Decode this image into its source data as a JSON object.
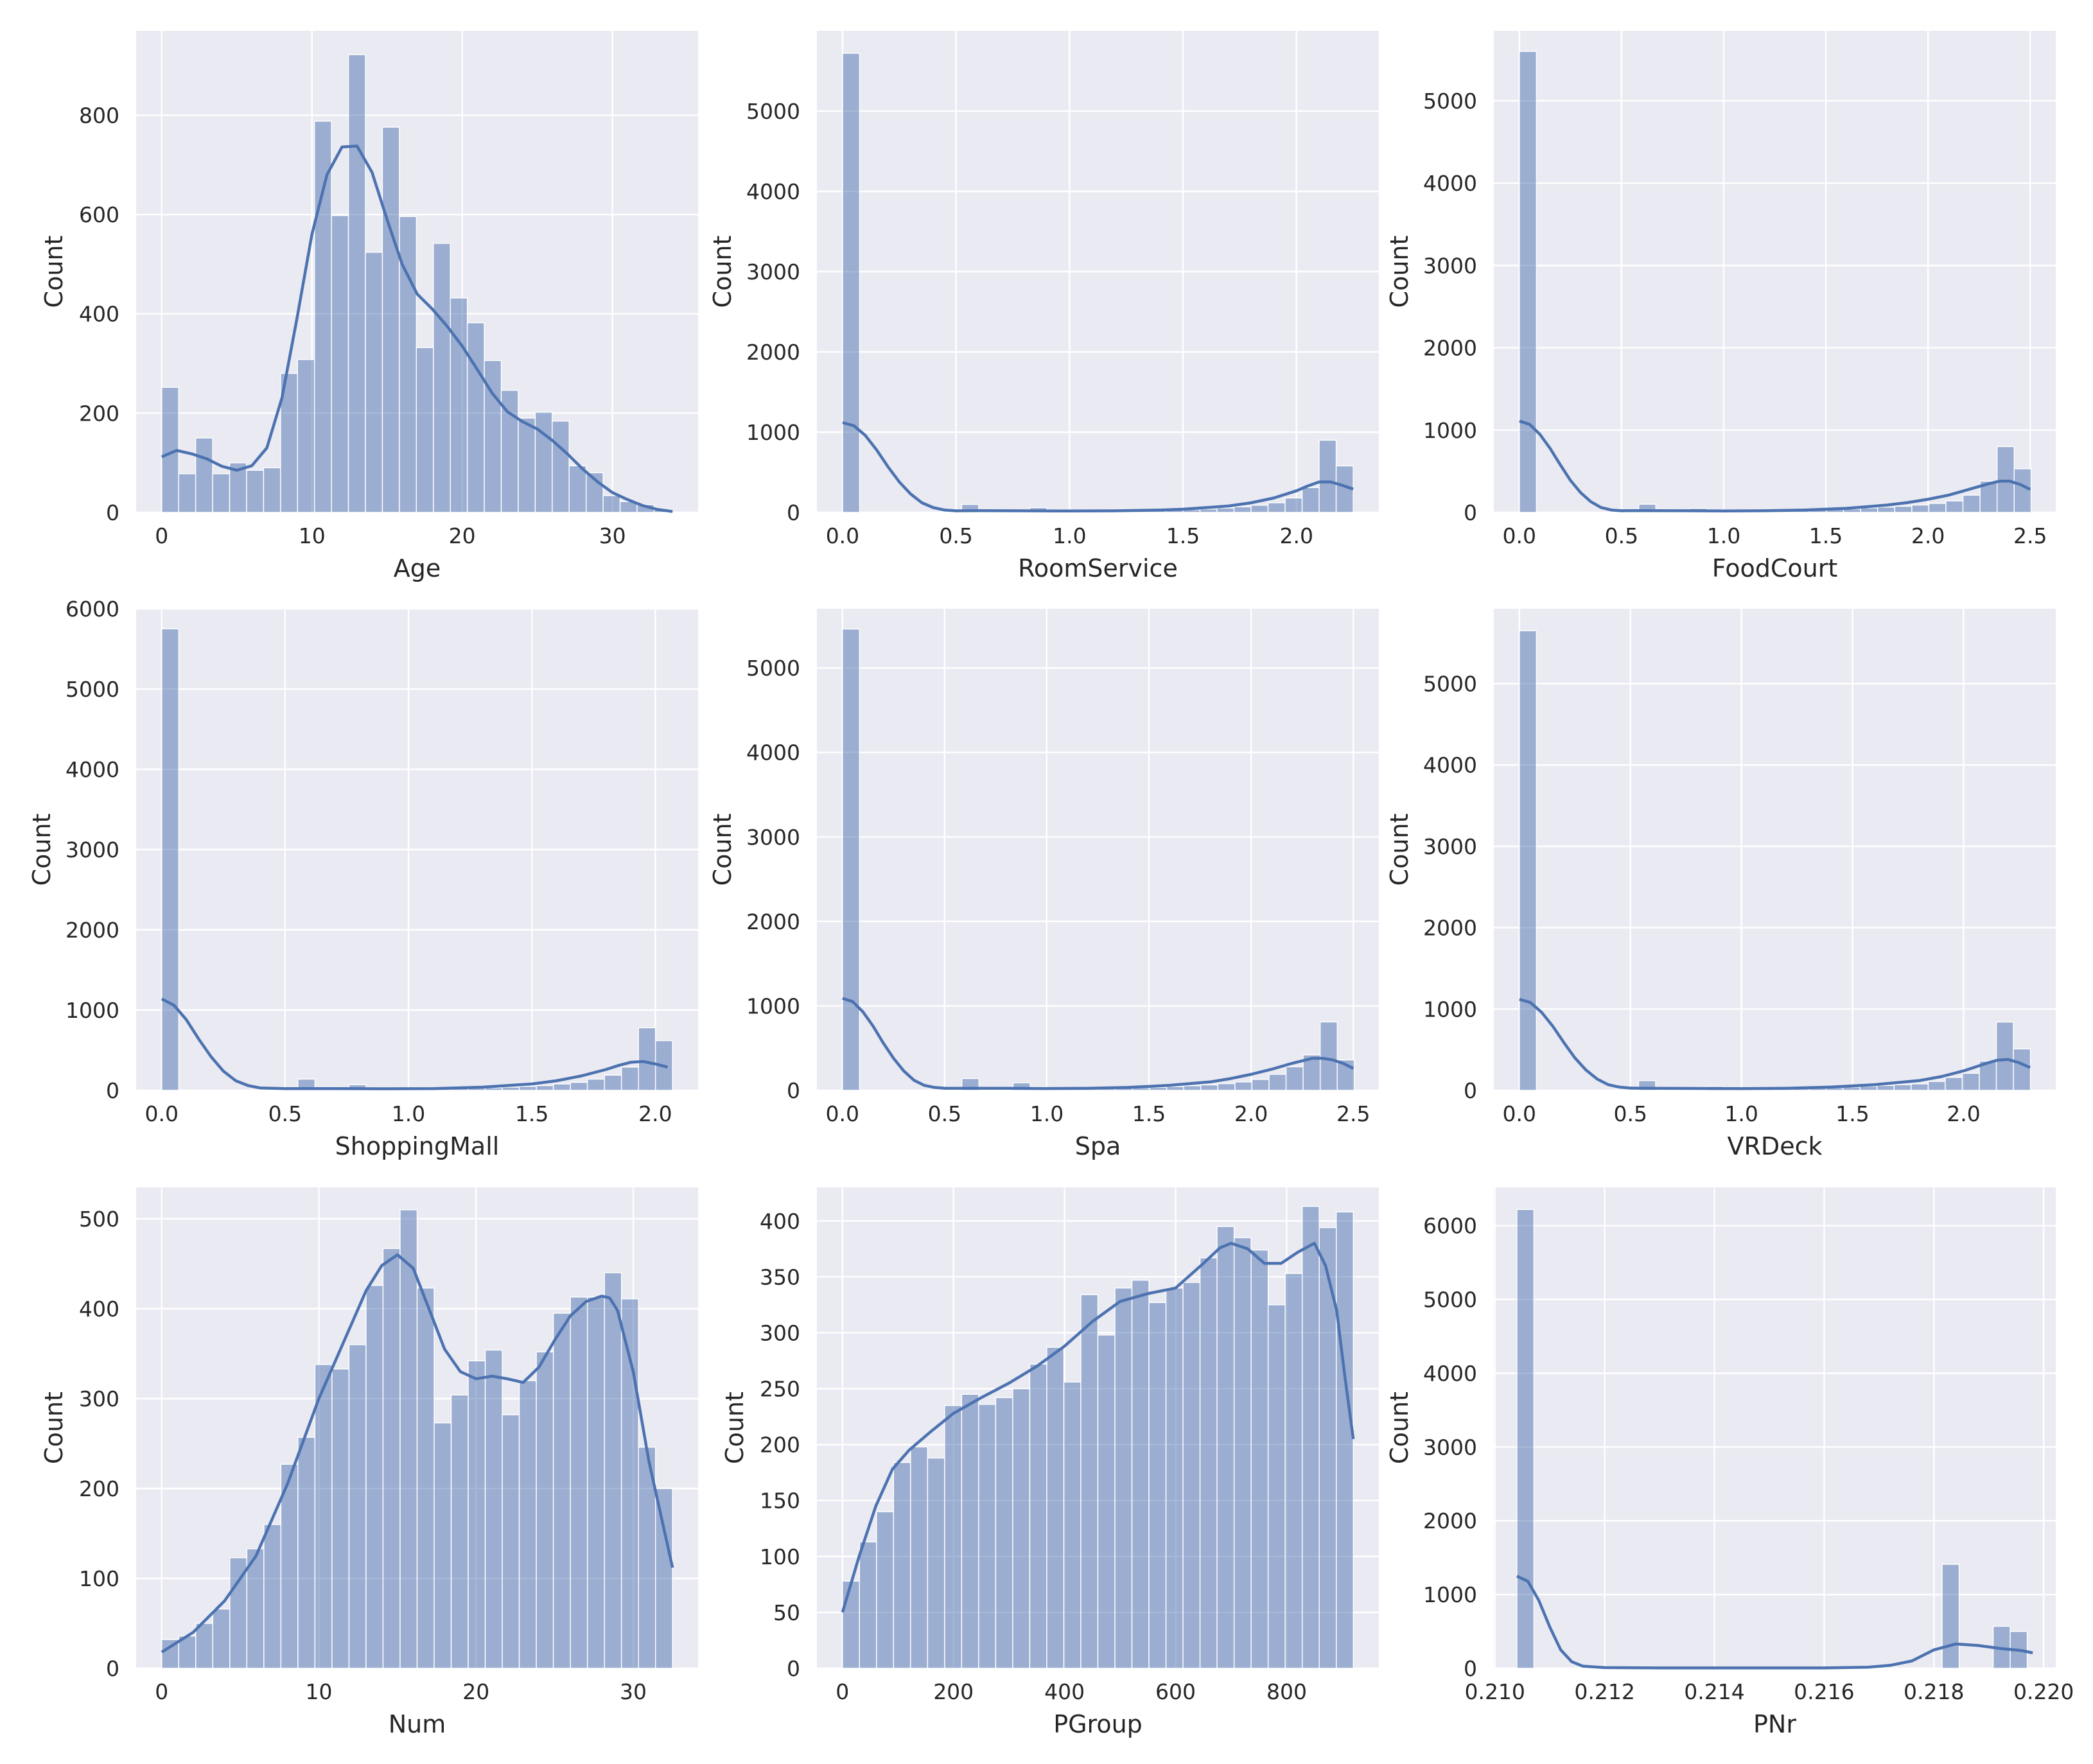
{
  "chart_data": [
    {
      "type": "bar",
      "xlabel": "Age",
      "ylabel": "Count",
      "xlim": [
        -1.7,
        35.7
      ],
      "ylim": [
        0,
        970
      ],
      "xticks": [
        0,
        10,
        20,
        30
      ],
      "yticks": [
        0,
        200,
        400,
        600,
        800
      ],
      "bin_width": 1.13,
      "bins_start": [
        0.0,
        1.13,
        2.26,
        3.39,
        4.52,
        5.65,
        6.78,
        7.91,
        9.04,
        10.17,
        11.3,
        12.43,
        13.56,
        14.69,
        15.82,
        16.95,
        18.08,
        19.21,
        20.34,
        21.47,
        22.6,
        23.73,
        24.86,
        25.99,
        27.12,
        28.25,
        29.38,
        30.51,
        31.64,
        32.77
      ],
      "values": [
        252,
        78,
        150,
        78,
        100,
        85,
        90,
        280,
        308,
        788,
        598,
        922,
        524,
        776,
        596,
        332,
        542,
        432,
        382,
        306,
        246,
        190,
        202,
        184,
        94,
        80,
        34,
        22,
        16,
        6
      ],
      "kde": {
        "x": [
          0,
          1,
          2,
          3,
          4,
          5,
          6,
          7,
          8,
          9,
          10,
          11,
          12,
          13,
          14,
          15,
          16,
          17,
          18,
          19,
          20,
          21,
          22,
          23,
          24,
          25,
          26,
          27,
          28,
          29,
          30,
          31,
          32,
          33,
          34
        ],
        "y": [
          112,
          125,
          118,
          108,
          93,
          85,
          94,
          130,
          230,
          390,
          560,
          680,
          736,
          738,
          685,
          590,
          500,
          440,
          410,
          375,
          335,
          288,
          240,
          203,
          183,
          168,
          145,
          118,
          88,
          62,
          40,
          26,
          14,
          6,
          2
        ]
      }
    },
    {
      "type": "bar",
      "xlabel": "RoomService",
      "ylabel": "Count",
      "xlim": [
        -0.113,
        2.363
      ],
      "ylim": [
        0,
        6000
      ],
      "xticks": [
        "0.0",
        "0.5",
        "1.0",
        "1.5",
        "2.0"
      ],
      "yticks": [
        0,
        1000,
        2000,
        3000,
        4000,
        5000
      ],
      "bin_width": 0.075,
      "bins_start": [
        0.0,
        0.075,
        0.15,
        0.225,
        0.3,
        0.375,
        0.45,
        0.525,
        0.6,
        0.675,
        0.75,
        0.825,
        0.9,
        0.975,
        1.05,
        1.125,
        1.2,
        1.275,
        1.35,
        1.425,
        1.5,
        1.575,
        1.65,
        1.725,
        1.8,
        1.875,
        1.95,
        2.025,
        2.1,
        2.175
      ],
      "values": [
        5720,
        0,
        0,
        0,
        0,
        0,
        0,
        100,
        0,
        0,
        0,
        60,
        0,
        10,
        12,
        14,
        16,
        20,
        25,
        30,
        35,
        42,
        55,
        70,
        90,
        120,
        180,
        310,
        900,
        580
      ],
      "kde": {
        "x": [
          0.0,
          0.05,
          0.1,
          0.15,
          0.2,
          0.25,
          0.3,
          0.35,
          0.4,
          0.45,
          0.5,
          0.6,
          0.8,
          1.0,
          1.2,
          1.4,
          1.5,
          1.6,
          1.7,
          1.8,
          1.9,
          2.0,
          2.05,
          2.1,
          2.15,
          2.2,
          2.25
        ],
        "y": [
          1120,
          1080,
          960,
          780,
          570,
          380,
          230,
          120,
          60,
          30,
          20,
          22,
          20,
          18,
          20,
          30,
          40,
          60,
          80,
          120,
          180,
          270,
          330,
          380,
          380,
          340,
          290
        ]
      }
    },
    {
      "type": "bar",
      "xlabel": "FoodCourt",
      "ylabel": "Count",
      "xlim": [
        -0.125,
        2.625
      ],
      "ylim": [
        0,
        5850
      ],
      "xticks": [
        "0.0",
        "0.5",
        "1.0",
        "1.5",
        "2.0",
        "2.5"
      ],
      "yticks": [
        0,
        1000,
        2000,
        3000,
        4000,
        5000
      ],
      "bin_width": 0.0835,
      "bins_start": [
        0.0,
        0.0835,
        0.167,
        0.2505,
        0.334,
        0.4175,
        0.501,
        0.5845,
        0.668,
        0.7515,
        0.835,
        0.9185,
        1.002,
        1.0855,
        1.169,
        1.2525,
        1.336,
        1.4195,
        1.503,
        1.5865,
        1.67,
        1.7535,
        1.837,
        1.9205,
        2.004,
        2.0875,
        2.171,
        2.2545,
        2.338,
        2.4215
      ],
      "values": [
        5600,
        0,
        0,
        0,
        0,
        0,
        0,
        100,
        0,
        0,
        50,
        30,
        10,
        12,
        15,
        18,
        22,
        30,
        35,
        42,
        55,
        65,
        75,
        90,
        110,
        140,
        210,
        380,
        800,
        530
      ],
      "kde": {
        "x": [
          0.0,
          0.05,
          0.1,
          0.15,
          0.2,
          0.25,
          0.3,
          0.35,
          0.4,
          0.45,
          0.5,
          0.6,
          0.8,
          1.0,
          1.2,
          1.4,
          1.6,
          1.8,
          1.9,
          2.0,
          2.1,
          2.2,
          2.3,
          2.35,
          2.4,
          2.45,
          2.5
        ],
        "y": [
          1110,
          1070,
          950,
          780,
          580,
          390,
          240,
          130,
          60,
          30,
          20,
          22,
          20,
          18,
          20,
          30,
          50,
          90,
          120,
          160,
          210,
          280,
          350,
          380,
          380,
          340,
          280
        ]
      }
    },
    {
      "type": "bar",
      "xlabel": "ShoppingMall",
      "ylabel": "Count",
      "xlim": [
        -0.1035,
        2.1735
      ],
      "ylim": [
        0,
        6000
      ],
      "xticks": [
        "0.0",
        "0.5",
        "1.0",
        "1.5",
        "2.0"
      ],
      "yticks": [
        0,
        1000,
        2000,
        3000,
        4000,
        5000,
        6000
      ],
      "bin_width": 0.069,
      "bins_start": [
        0.0,
        0.069,
        0.138,
        0.207,
        0.276,
        0.345,
        0.414,
        0.483,
        0.552,
        0.621,
        0.69,
        0.759,
        0.828,
        0.897,
        0.966,
        1.035,
        1.104,
        1.173,
        1.242,
        1.311,
        1.38,
        1.449,
        1.518,
        1.587,
        1.656,
        1.725,
        1.794,
        1.863,
        1.932,
        2.001
      ],
      "values": [
        5750,
        0,
        0,
        0,
        0,
        0,
        0,
        0,
        140,
        0,
        0,
        70,
        0,
        10,
        12,
        15,
        18,
        22,
        28,
        32,
        40,
        50,
        60,
        80,
        100,
        140,
        190,
        290,
        780,
        620
      ],
      "kde": {
        "x": [
          0.0,
          0.05,
          0.1,
          0.15,
          0.2,
          0.25,
          0.3,
          0.35,
          0.4,
          0.5,
          0.7,
          0.9,
          1.1,
          1.3,
          1.5,
          1.6,
          1.7,
          1.8,
          1.85,
          1.9,
          1.95,
          2.0,
          2.05
        ],
        "y": [
          1140,
          1060,
          880,
          640,
          420,
          240,
          120,
          60,
          30,
          22,
          22,
          20,
          22,
          40,
          80,
          120,
          180,
          260,
          310,
          350,
          360,
          330,
          290
        ]
      }
    },
    {
      "type": "bar",
      "xlabel": "Spa",
      "ylabel": "Count",
      "xlim": [
        -0.125,
        2.625
      ],
      "ylim": [
        0,
        5700
      ],
      "xticks": [
        "0.0",
        "0.5",
        "1.0",
        "1.5",
        "2.0",
        "2.5"
      ],
      "yticks": [
        0,
        1000,
        2000,
        3000,
        4000,
        5000
      ],
      "bin_width": 0.0835,
      "bins_start": [
        0.0,
        0.0835,
        0.167,
        0.2505,
        0.334,
        0.4175,
        0.501,
        0.5845,
        0.668,
        0.7515,
        0.835,
        0.9185,
        1.002,
        1.0855,
        1.169,
        1.2525,
        1.336,
        1.4195,
        1.503,
        1.5865,
        1.67,
        1.7535,
        1.837,
        1.9205,
        2.004,
        2.0875,
        2.171,
        2.2545,
        2.338,
        2.4215
      ],
      "values": [
        5460,
        0,
        0,
        0,
        0,
        0,
        0,
        140,
        0,
        0,
        90,
        40,
        12,
        14,
        16,
        20,
        25,
        30,
        35,
        45,
        55,
        65,
        80,
        100,
        130,
        190,
        280,
        420,
        810,
        360
      ],
      "kde": {
        "x": [
          0.0,
          0.05,
          0.1,
          0.15,
          0.2,
          0.25,
          0.3,
          0.35,
          0.4,
          0.45,
          0.5,
          0.6,
          0.8,
          1.0,
          1.2,
          1.4,
          1.6,
          1.8,
          1.9,
          2.0,
          2.1,
          2.2,
          2.3,
          2.35,
          2.4,
          2.45,
          2.5
        ],
        "y": [
          1090,
          1050,
          930,
          760,
          560,
          380,
          230,
          120,
          60,
          35,
          25,
          25,
          24,
          22,
          24,
          35,
          60,
          100,
          140,
          190,
          250,
          320,
          380,
          380,
          360,
          320,
          260
        ]
      }
    },
    {
      "type": "bar",
      "xlabel": "VRDeck",
      "ylabel": "Count",
      "xlim": [
        -0.115,
        2.415
      ],
      "ylim": [
        0,
        5920
      ],
      "xticks": [
        "0.0",
        "0.5",
        "1.0",
        "1.5",
        "2.0"
      ],
      "yticks": [
        0,
        1000,
        2000,
        3000,
        4000,
        5000
      ],
      "bin_width": 0.0767,
      "bins_start": [
        0.0,
        0.0767,
        0.1534,
        0.2301,
        0.3068,
        0.3835,
        0.4602,
        0.5369,
        0.6136,
        0.6903,
        0.767,
        0.8437,
        0.9204,
        0.9971,
        1.0738,
        1.1505,
        1.2272,
        1.3039,
        1.3806,
        1.4573,
        1.534,
        1.6107,
        1.6874,
        1.7641,
        1.8408,
        1.9175,
        1.9942,
        2.0709,
        2.1476,
        2.2243
      ],
      "values": [
        5650,
        0,
        0,
        0,
        0,
        0,
        0,
        120,
        0,
        0,
        0,
        50,
        10,
        12,
        15,
        18,
        22,
        28,
        32,
        40,
        50,
        60,
        70,
        80,
        110,
        160,
        210,
        360,
        840,
        510
      ],
      "kde": {
        "x": [
          0.0,
          0.05,
          0.1,
          0.15,
          0.2,
          0.25,
          0.3,
          0.35,
          0.4,
          0.45,
          0.5,
          0.6,
          0.8,
          1.0,
          1.2,
          1.4,
          1.6,
          1.8,
          1.9,
          2.0,
          2.1,
          2.15,
          2.2,
          2.25,
          2.3
        ],
        "y": [
          1120,
          1080,
          960,
          790,
          590,
          400,
          250,
          140,
          70,
          40,
          28,
          25,
          24,
          22,
          25,
          40,
          70,
          120,
          170,
          240,
          330,
          370,
          380,
          340,
          280
        ]
      }
    },
    {
      "type": "bar",
      "xlabel": "Num",
      "ylabel": "Count",
      "xlim": [
        -1.625,
        34.125
      ],
      "ylim": [
        0,
        535
      ],
      "xticks": [
        0,
        10,
        20,
        30
      ],
      "yticks": [
        0,
        100,
        200,
        300,
        400,
        500
      ],
      "bin_width": 1.0833,
      "bins_start": [
        0.0,
        1.0833,
        2.1667,
        3.25,
        4.3333,
        5.4167,
        6.5,
        7.5833,
        8.6667,
        9.75,
        10.8333,
        11.9167,
        13.0,
        14.0833,
        15.1667,
        16.25,
        17.3333,
        18.4167,
        19.5,
        20.5833,
        21.6667,
        22.75,
        23.8333,
        24.9167,
        26.0,
        27.0833,
        28.1667,
        29.25,
        30.3333,
        31.4167
      ],
      "values": [
        32,
        36,
        50,
        66,
        123,
        133,
        160,
        227,
        257,
        338,
        333,
        360,
        426,
        467,
        510,
        423,
        273,
        304,
        342,
        354,
        282,
        320,
        352,
        395,
        413,
        413,
        440,
        411,
        246,
        200
      ],
      "kde": {
        "x": [
          0,
          2,
          4,
          6,
          8,
          10,
          12,
          13,
          14,
          15,
          16,
          17,
          18,
          19,
          20,
          21,
          22,
          23,
          24,
          25,
          26,
          27,
          28,
          28.5,
          29,
          30,
          31,
          32.5
        ],
        "y": [
          18,
          40,
          75,
          125,
          205,
          300,
          380,
          420,
          448,
          460,
          445,
          400,
          355,
          330,
          322,
          325,
          322,
          318,
          335,
          365,
          392,
          408,
          414,
          412,
          398,
          330,
          230,
          112
        ]
      }
    },
    {
      "type": "bar",
      "xlabel": "PGroup",
      "ylabel": "Count",
      "xlim": [
        -46,
        966
      ],
      "ylim": [
        0,
        430
      ],
      "xticks": [
        0,
        200,
        400,
        600,
        800
      ],
      "yticks": [
        0,
        50,
        100,
        150,
        200,
        250,
        300,
        350,
        400
      ],
      "bin_width": 30.67,
      "bins_start": [
        0,
        30.67,
        61.33,
        92.0,
        122.67,
        153.33,
        184.0,
        214.67,
        245.33,
        276.0,
        306.67,
        337.33,
        368.0,
        398.67,
        429.33,
        460.0,
        490.67,
        521.33,
        552.0,
        582.67,
        613.33,
        644.0,
        674.67,
        705.33,
        736.0,
        766.67,
        797.33,
        828.0,
        858.67,
        889.33
      ],
      "values": [
        78,
        113,
        140,
        184,
        198,
        188,
        235,
        245,
        236,
        242,
        250,
        272,
        287,
        256,
        334,
        298,
        340,
        347,
        327,
        340,
        345,
        367,
        395,
        385,
        374,
        325,
        353,
        413,
        394,
        408
      ],
      "kde": {
        "x": [
          0,
          30,
          60,
          90,
          120,
          160,
          200,
          250,
          300,
          350,
          400,
          450,
          500,
          550,
          600,
          650,
          680,
          700,
          730,
          760,
          790,
          820,
          850,
          870,
          890,
          905,
          920
        ],
        "y": [
          50,
          100,
          145,
          178,
          195,
          212,
          228,
          242,
          255,
          270,
          288,
          310,
          328,
          335,
          340,
          362,
          376,
          380,
          375,
          362,
          362,
          372,
          380,
          360,
          320,
          260,
          205
        ]
      }
    },
    {
      "type": "bar",
      "xlabel": "PNr",
      "ylabel": "Count",
      "xlim": [
        0.20998,
        0.22022
      ],
      "ylim": [
        0,
        6520
      ],
      "xticks": [
        "0.210",
        "0.212",
        "0.214",
        "0.216",
        "0.218",
        "0.220"
      ],
      "yticks": [
        0,
        1000,
        2000,
        3000,
        4000,
        5000,
        6000
      ],
      "bin_width": 0.00031,
      "bins_start": [
        0.2104,
        0.21071,
        0.21102,
        0.21133,
        0.21164,
        0.21195,
        0.21226,
        0.21257,
        0.21288,
        0.21319,
        0.2135,
        0.21381,
        0.21412,
        0.21443,
        0.21474,
        0.21505,
        0.21536,
        0.21567,
        0.21598,
        0.21629,
        0.2166,
        0.21691,
        0.21722,
        0.21753,
        0.21784,
        0.21815,
        0.21846,
        0.21877,
        0.21908,
        0.21939
      ],
      "values": [
        6220,
        0,
        0,
        0,
        0,
        0,
        0,
        0,
        0,
        0,
        0,
        0,
        0,
        0,
        0,
        0,
        0,
        0,
        0,
        0,
        0,
        0,
        0,
        0,
        0,
        1410,
        0,
        0,
        570,
        500
      ],
      "kde": {
        "x": [
          0.2104,
          0.2106,
          0.2108,
          0.211,
          0.2112,
          0.2114,
          0.2116,
          0.212,
          0.213,
          0.214,
          0.215,
          0.216,
          0.2168,
          0.2172,
          0.2176,
          0.218,
          0.2184,
          0.2188,
          0.2192,
          0.2196,
          0.2198
        ],
        "y": [
          1250,
          1180,
          920,
          560,
          250,
          90,
          30,
          10,
          5,
          5,
          5,
          5,
          15,
          40,
          100,
          250,
          330,
          310,
          270,
          240,
          210
        ]
      }
    }
  ]
}
